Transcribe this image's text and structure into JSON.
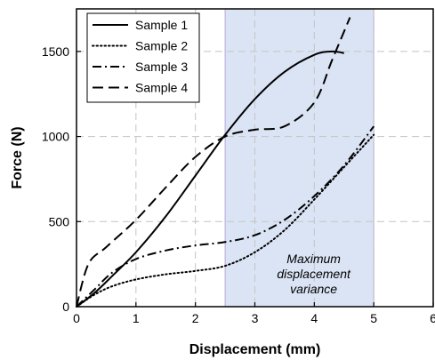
{
  "chart_data": {
    "type": "line",
    "xlabel": "Displacement (mm)",
    "ylabel": "Force (N)",
    "xlim": [
      0,
      6
    ],
    "ylim": [
      0,
      1750
    ],
    "xticks": [
      0,
      1,
      2,
      3,
      4,
      5,
      6
    ],
    "yticks": [
      0,
      500,
      1000,
      1500
    ],
    "grid": true,
    "legend_position": "top-left",
    "highlight": {
      "x_range": [
        2.5,
        5
      ],
      "label_lines": [
        "Maximum",
        "displacement",
        "variance"
      ],
      "color": "#dbe4f5"
    },
    "series": [
      {
        "name": "Sample 1",
        "dash": "solid",
        "x": [
          0,
          0.3,
          0.6,
          1.0,
          1.5,
          2.0,
          2.5,
          3.0,
          3.5,
          4.0,
          4.3,
          4.5
        ],
        "y": [
          0,
          80,
          180,
          320,
          530,
          770,
          1010,
          1220,
          1380,
          1480,
          1500,
          1490
        ]
      },
      {
        "name": "Sample 2",
        "dash": "dotted",
        "x": [
          0,
          0.3,
          0.6,
          1.0,
          1.5,
          2.0,
          2.5,
          3.0,
          3.5,
          4.0,
          4.5,
          5.0
        ],
        "y": [
          0,
          70,
          120,
          160,
          190,
          210,
          240,
          320,
          450,
          630,
          820,
          1010
        ]
      },
      {
        "name": "Sample 3",
        "dash": "dashdot",
        "x": [
          0,
          0.3,
          0.6,
          1.0,
          1.5,
          2.0,
          2.5,
          3.0,
          3.5,
          4.0,
          4.5,
          5.0
        ],
        "y": [
          0,
          100,
          200,
          280,
          330,
          360,
          380,
          420,
          510,
          650,
          830,
          1060
        ]
      },
      {
        "name": "Sample 4",
        "dash": "dashed",
        "x": [
          0,
          0.2,
          0.5,
          1.0,
          1.5,
          2.0,
          2.5,
          3.0,
          3.5,
          4.0,
          4.3,
          4.6
        ],
        "y": [
          0,
          250,
          350,
          510,
          700,
          880,
          1000,
          1040,
          1060,
          1200,
          1450,
          1700
        ]
      }
    ]
  }
}
